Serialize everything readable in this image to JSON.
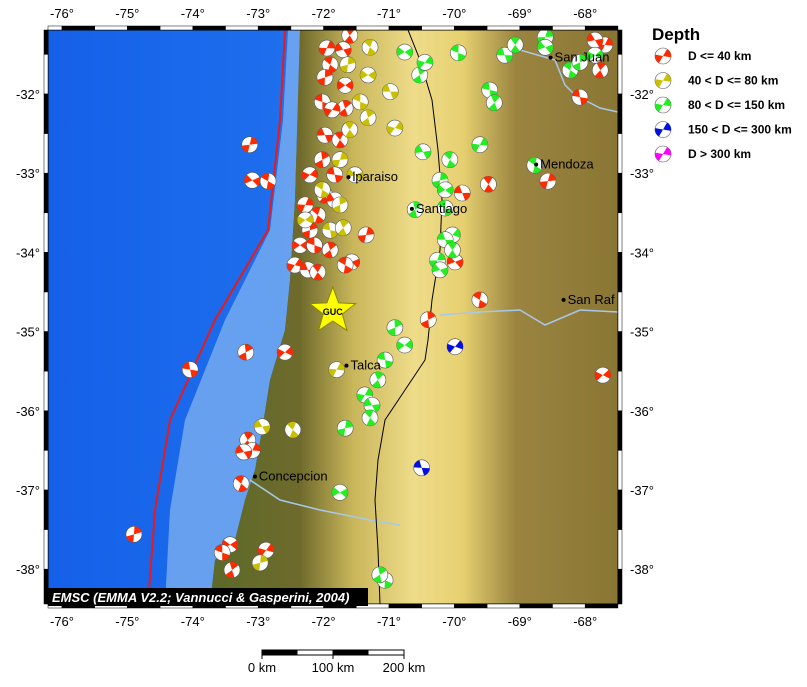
{
  "map": {
    "extent_lon": [
      -76.21,
      -67.5
    ],
    "extent_lat": [
      -38.44,
      -31.19
    ],
    "lon_ticks": [
      "-76°",
      "-75°",
      "-74°",
      "-73°",
      "-72°",
      "-71°",
      "-70°",
      "-69°",
      "-68°"
    ],
    "lon_values": [
      -76,
      -75,
      -74,
      -73,
      -72,
      -71,
      -70,
      -69,
      -68
    ],
    "lat_ticks": [
      "-32°",
      "-33°",
      "-34°",
      "-35°",
      "-36°",
      "-37°",
      "-38°"
    ],
    "lat_values": [
      -32,
      -33,
      -34,
      -35,
      -36,
      -37,
      -38
    ],
    "colors": {
      "ocean_deep": "#1f6ff0",
      "ocean_shelf": "#7fb4f0",
      "lowland": "#6b6a2a",
      "andes": "#e6d27a",
      "pampa": "#8a7a3a",
      "trench": "#e81a1a",
      "border": "#000000"
    },
    "credit": "EMSC (EMMA V2.2; Vannucci & Gasperini, 2004)",
    "station": {
      "code": "GUC",
      "lon": -71.86,
      "lat": -34.74,
      "color": "#ffff00"
    },
    "cities": [
      {
        "name": "Valparaiso",
        "label": "lparaiso",
        "lon": -71.62,
        "lat": -33.05
      },
      {
        "name": "Santiago",
        "label": "Santiago",
        "lon": -70.65,
        "lat": -33.45
      },
      {
        "name": "Talca",
        "label": "Talca",
        "lon": -71.65,
        "lat": -35.43
      },
      {
        "name": "Concepcion",
        "label": "Concepcion",
        "lon": -73.05,
        "lat": -36.83
      },
      {
        "name": "Mendoza",
        "label": "Mendoza",
        "lon": -68.75,
        "lat": -32.89
      },
      {
        "name": "San Juan",
        "label": "San Juan",
        "lon": -68.53,
        "lat": -31.54
      },
      {
        "name": "San Rafael",
        "label": "San Raf",
        "lon": -68.33,
        "lat": -34.6
      }
    ],
    "scale_bar": {
      "labels": [
        "0 km",
        "100 km",
        "200 km"
      ]
    }
  },
  "legend": {
    "title": "Depth",
    "items": [
      {
        "label": "D <= 40 km",
        "color": "#ff2a00"
      },
      {
        "label": "40 < D <= 80 km",
        "color": "#c8c000"
      },
      {
        "label": "80 < D <= 150 km",
        "color": "#22ee22"
      },
      {
        "label": "150 < D <= 300 km",
        "color": "#0010e0"
      },
      {
        "label": "D > 300 km",
        "color": "#ff00ff"
      }
    ]
  },
  "events": [
    [
      -71.6,
      -31.26,
      0
    ],
    [
      -71.95,
      -31.42,
      0
    ],
    [
      -71.7,
      -31.44,
      0
    ],
    [
      -71.9,
      -31.63,
      0
    ],
    [
      -71.98,
      -31.79,
      0
    ],
    [
      -71.67,
      -31.89,
      0
    ],
    [
      -72.02,
      -32.1,
      0
    ],
    [
      -71.67,
      -32.18,
      0
    ],
    [
      -71.87,
      -32.2,
      0
    ],
    [
      -71.98,
      -32.52,
      0
    ],
    [
      -71.75,
      -32.58,
      0
    ],
    [
      -73.13,
      -32.64,
      0
    ],
    [
      -73.09,
      -33.09,
      0
    ],
    [
      -72.85,
      -33.1,
      0
    ],
    [
      -72.02,
      -32.83,
      0
    ],
    [
      -72.21,
      -33.02,
      0
    ],
    [
      -71.83,
      -33.02,
      0
    ],
    [
      -71.98,
      -33.28,
      0
    ],
    [
      -72.28,
      -33.4,
      0
    ],
    [
      -71.83,
      -33.34,
      0
    ],
    [
      -72.09,
      -33.53,
      0
    ],
    [
      -72.21,
      -33.72,
      0
    ],
    [
      -72.36,
      -33.91,
      0
    ],
    [
      -72.14,
      -33.91,
      0
    ],
    [
      -71.9,
      -33.97,
      0
    ],
    [
      -72.44,
      -34.16,
      0
    ],
    [
      -72.24,
      -34.22,
      0
    ],
    [
      -72.09,
      -34.25,
      0
    ],
    [
      -71.35,
      -33.78,
      0
    ],
    [
      -71.57,
      -34.12,
      0
    ],
    [
      -71.67,
      -34.16,
      0
    ],
    [
      -73.19,
      -35.26,
      0
    ],
    [
      -72.59,
      -35.26,
      0
    ],
    [
      -74.04,
      -35.48,
      0
    ],
    [
      -73.16,
      -36.37,
      0
    ],
    [
      -73.09,
      -36.5,
      0
    ],
    [
      -73.22,
      -36.52,
      0
    ],
    [
      -73.26,
      -36.92,
      0
    ],
    [
      -74.9,
      -37.56,
      0
    ],
    [
      -73.43,
      -37.69,
      0
    ],
    [
      -73.55,
      -37.79,
      0
    ],
    [
      -73.4,
      -38.01,
      0
    ],
    [
      -72.88,
      -37.76,
      0
    ],
    [
      -69.88,
      -33.25,
      0
    ],
    [
      -69.48,
      -33.14,
      0
    ],
    [
      -68.57,
      -33.1,
      0
    ],
    [
      -69.99,
      -34.12,
      0
    ],
    [
      -69.61,
      -34.6,
      0
    ],
    [
      -70.4,
      -34.85,
      0
    ],
    [
      -67.73,
      -35.55,
      0
    ],
    [
      -68.08,
      -32.04,
      0
    ],
    [
      -67.77,
      -31.7,
      0
    ],
    [
      -67.7,
      -31.38,
      0
    ],
    [
      -67.85,
      -31.32,
      0
    ],
    [
      -71.29,
      -31.41,
      1
    ],
    [
      -71.63,
      -31.63,
      1
    ],
    [
      -71.32,
      -31.76,
      1
    ],
    [
      -71.44,
      -32.1,
      1
    ],
    [
      -71.32,
      -32.3,
      1
    ],
    [
      -70.91,
      -32.43,
      1
    ],
    [
      -70.98,
      -31.97,
      1
    ],
    [
      -71.6,
      -32.45,
      1
    ],
    [
      -71.75,
      -32.83,
      1
    ],
    [
      -71.52,
      -33.02,
      1
    ],
    [
      -72.02,
      -33.21,
      1
    ],
    [
      -71.75,
      -33.4,
      1
    ],
    [
      -72.28,
      -33.59,
      1
    ],
    [
      -71.9,
      -33.72,
      1
    ],
    [
      -71.7,
      -33.69,
      1
    ],
    [
      -71.8,
      -35.48,
      1
    ],
    [
      -72.94,
      -36.2,
      1
    ],
    [
      -72.47,
      -36.24,
      1
    ],
    [
      -72.97,
      -37.92,
      1
    ],
    [
      -70.76,
      -31.47,
      2
    ],
    [
      -69.94,
      -31.48,
      2
    ],
    [
      -70.53,
      -31.76,
      2
    ],
    [
      -70.45,
      -31.6,
      2
    ],
    [
      -69.23,
      -31.51,
      2
    ],
    [
      -69.07,
      -31.38,
      2
    ],
    [
      -68.61,
      -31.28,
      2
    ],
    [
      -68.61,
      -31.41,
      2
    ],
    [
      -68.23,
      -31.7,
      2
    ],
    [
      -68.08,
      -31.6,
      2
    ],
    [
      -67.85,
      -31.51,
      2
    ],
    [
      -69.46,
      -31.95,
      2
    ],
    [
      -69.39,
      -32.11,
      2
    ],
    [
      -69.61,
      -32.64,
      2
    ],
    [
      -70.48,
      -32.73,
      2
    ],
    [
      -70.07,
      -32.83,
      2
    ],
    [
      -70.22,
      -33.09,
      2
    ],
    [
      -70.14,
      -33.21,
      2
    ],
    [
      -70.14,
      -33.44,
      2
    ],
    [
      -70.6,
      -33.46,
      2
    ],
    [
      -70.03,
      -33.78,
      2
    ],
    [
      -70.14,
      -33.84,
      2
    ],
    [
      -70.03,
      -33.97,
      2
    ],
    [
      -70.26,
      -34.1,
      2
    ],
    [
      -70.22,
      -34.22,
      2
    ],
    [
      -68.77,
      -32.9,
      2
    ],
    [
      -70.91,
      -34.95,
      2
    ],
    [
      -70.76,
      -35.17,
      2
    ],
    [
      -71.06,
      -35.36,
      2
    ],
    [
      -71.17,
      -35.61,
      2
    ],
    [
      -71.37,
      -35.8,
      2
    ],
    [
      -71.26,
      -35.93,
      2
    ],
    [
      -71.29,
      -36.09,
      2
    ],
    [
      -71.67,
      -36.22,
      2
    ],
    [
      -71.75,
      -37.03,
      2
    ],
    [
      -71.06,
      -38.14,
      2
    ],
    [
      -71.14,
      -38.07,
      2
    ],
    [
      -69.99,
      -35.19,
      3
    ],
    [
      -70.5,
      -36.72,
      3
    ]
  ]
}
